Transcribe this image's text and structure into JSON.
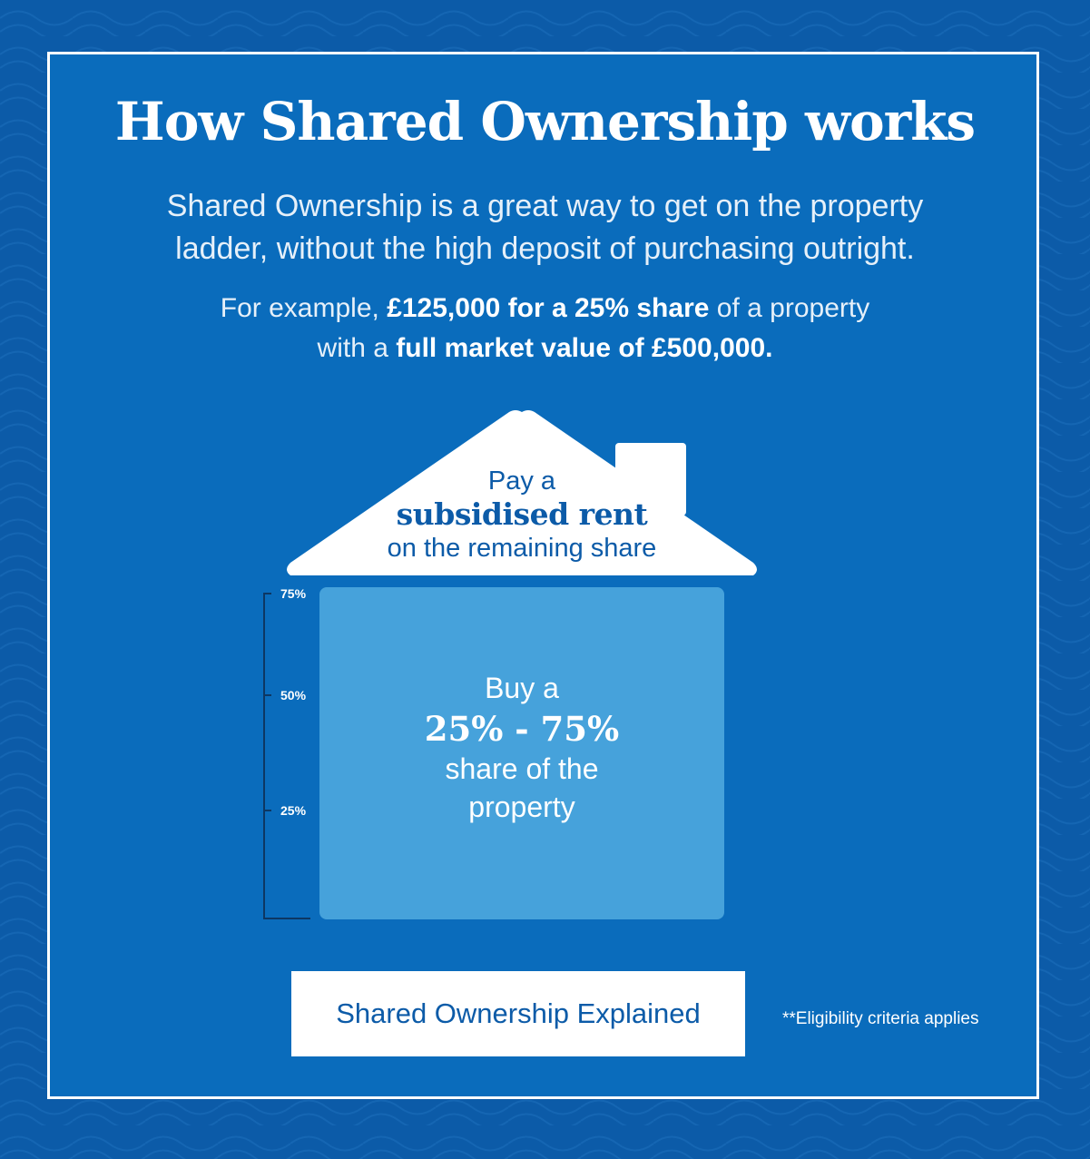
{
  "title": "How Shared Ownership works",
  "intro": {
    "line1": "Shared Ownership is a great way to get on the property",
    "line2": "ladder, without the high deposit of purchasing outright."
  },
  "example": {
    "prefix": "For example, ",
    "price_bold": "£125,000 for a 25% share",
    "middle": " of a property",
    "line2_prefix": "with a ",
    "value_bold": "full market value of £500,000."
  },
  "roof": {
    "line1": "Pay a",
    "line2": "subsidised rent",
    "line3": "on the remaining share"
  },
  "share": {
    "line1": "Buy a",
    "line2": "25% - 75%",
    "line3": "share of the",
    "line4": "property"
  },
  "scale": {
    "labels": [
      "75%",
      "50%",
      "25%"
    ]
  },
  "cta": {
    "label": "Shared Ownership Explained"
  },
  "note": "**Eligibility criteria applies",
  "colors": {
    "background": "#0c5ba8",
    "panel": "#0a6cbc",
    "share_box": "#46a2db",
    "text_dark_blue": "#0c5ba8",
    "white": "#ffffff"
  },
  "icons": [
    "house-roof-icon",
    "chimney-icon"
  ]
}
